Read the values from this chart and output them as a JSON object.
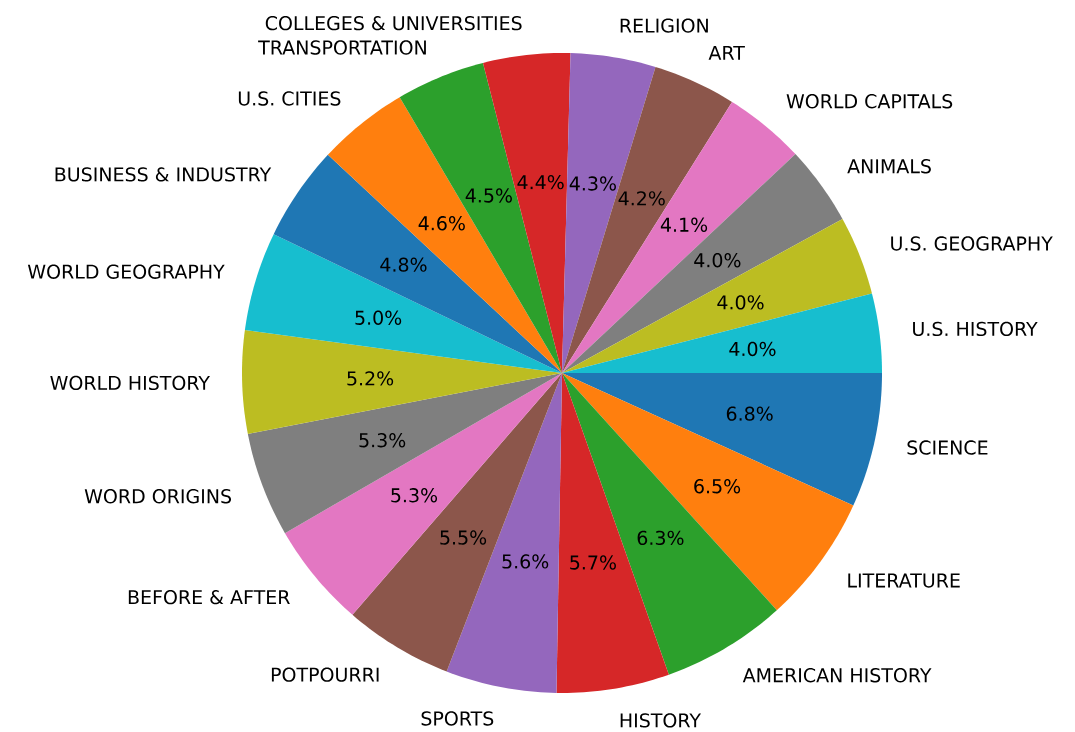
{
  "chart_data": {
    "type": "pie",
    "categories": [
      "SCIENCE",
      "LITERATURE",
      "AMERICAN HISTORY",
      "HISTORY",
      "SPORTS",
      "POTPOURRI",
      "BEFORE & AFTER",
      "WORD ORIGINS",
      "WORLD HISTORY",
      "WORLD GEOGRAPHY",
      "BUSINESS & INDUSTRY",
      "U.S. CITIES",
      "TRANSPORTATION",
      "COLLEGES & UNIVERSITIES",
      "RELIGION",
      "ART",
      "WORLD CAPITALS",
      "ANIMALS",
      "U.S. GEOGRAPHY",
      "U.S. HISTORY"
    ],
    "values": [
      6.8,
      6.5,
      6.3,
      5.7,
      5.6,
      5.5,
      5.3,
      5.3,
      5.2,
      5.0,
      4.8,
      4.6,
      4.5,
      4.4,
      4.3,
      4.2,
      4.1,
      4.0,
      4.0,
      4.0
    ],
    "colors": [
      "#1f77b4",
      "#ff7f0e",
      "#2ca02c",
      "#d62728",
      "#9467bd",
      "#8c564b",
      "#e377c2",
      "#7f7f7f",
      "#bcbd22",
      "#17becf",
      "#1f77b4",
      "#ff7f0e",
      "#2ca02c",
      "#d62728",
      "#9467bd",
      "#8c564b",
      "#e377c2",
      "#7f7f7f",
      "#bcbd22",
      "#17becf"
    ],
    "value_labels": [
      "6.8%",
      "6.5%",
      "6.3%",
      "5.7%",
      "5.6%",
      "5.5%",
      "5.3%",
      "5.3%",
      "5.2%",
      "5.0%",
      "4.8%",
      "4.6%",
      "4.5%",
      "4.4%",
      "4.3%",
      "4.2%",
      "4.1%",
      "4.0%",
      "4.0%",
      "4.0%"
    ]
  }
}
